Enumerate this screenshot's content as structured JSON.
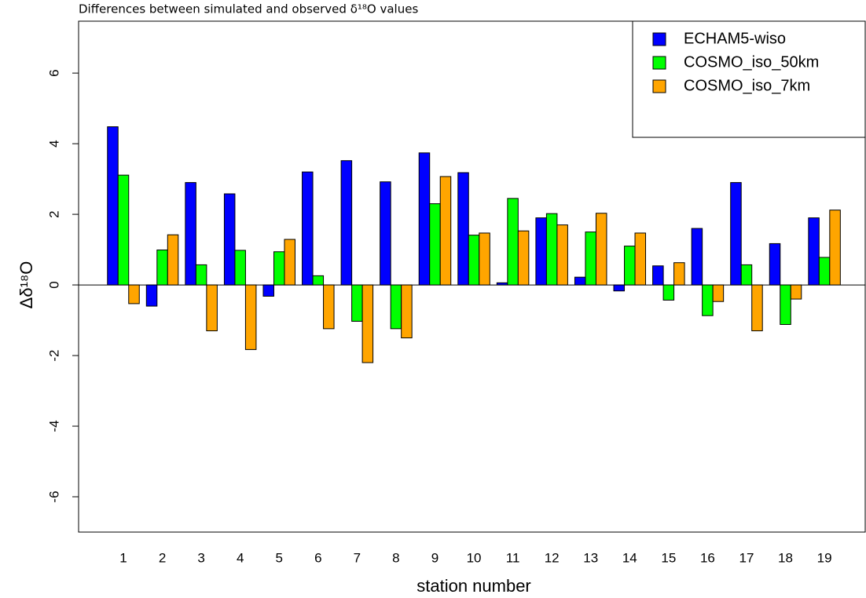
{
  "chart_data": {
    "type": "bar",
    "title": "Differences between simulated and observed δ¹⁸O values",
    "y_label": "Δδ¹⁸O",
    "x_label": "station number",
    "categories": [
      "1",
      "2",
      "3",
      "4",
      "5",
      "6",
      "7",
      "8",
      "9",
      "10",
      "11",
      "12",
      "13",
      "14",
      "15",
      "16",
      "17",
      "18",
      "19"
    ],
    "series": [
      {
        "name": "ECHAM5-wiso",
        "color": "#0000ff",
        "values": [
          4.48,
          -0.6,
          2.9,
          2.58,
          -0.32,
          3.2,
          3.52,
          2.92,
          3.74,
          3.18,
          0.06,
          1.9,
          0.22,
          -0.17,
          0.54,
          1.6,
          2.9,
          1.17,
          1.9
        ]
      },
      {
        "name": "COSMO_iso_50km",
        "color": "#00ff00",
        "values": [
          3.11,
          0.99,
          0.57,
          0.98,
          0.94,
          0.26,
          -1.03,
          -1.24,
          2.3,
          1.41,
          2.45,
          2.02,
          1.5,
          1.1,
          -0.43,
          -0.87,
          0.57,
          -1.12,
          0.78
        ]
      },
      {
        "name": "COSMO_iso_7km",
        "color": "#ffa500",
        "values": [
          -0.53,
          1.42,
          -1.3,
          -1.83,
          1.29,
          -1.24,
          -2.2,
          -1.5,
          3.07,
          1.47,
          1.53,
          1.7,
          2.03,
          1.47,
          0.63,
          -0.47,
          -1.3,
          -0.4,
          2.12
        ]
      }
    ],
    "ylim": [
      -7,
      7.47
    ],
    "yticks": [
      -6,
      -4,
      -2,
      0,
      2,
      4,
      6
    ],
    "legend": "top-right"
  }
}
